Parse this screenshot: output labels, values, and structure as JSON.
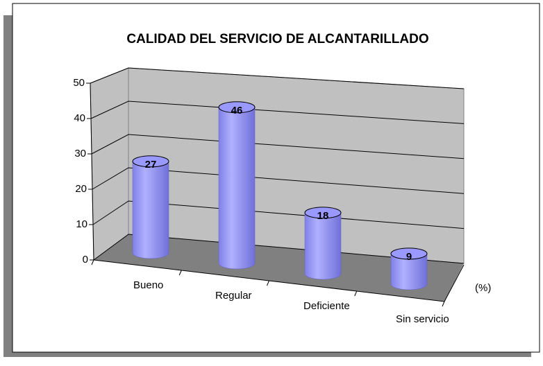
{
  "chart_data": {
    "type": "bar",
    "title": "CALIDAD DEL SERVICIO DE ALCANTARILLADO",
    "categories": [
      "Bueno",
      "Regular",
      "Deficiente",
      "Sin servicio"
    ],
    "values": [
      27,
      46,
      18,
      9
    ],
    "color": "#9999ff",
    "ylim": [
      0,
      50
    ],
    "yticks": [
      0,
      10,
      20,
      30,
      40,
      50
    ],
    "grid": true,
    "depth_axis_label": "(%)"
  }
}
